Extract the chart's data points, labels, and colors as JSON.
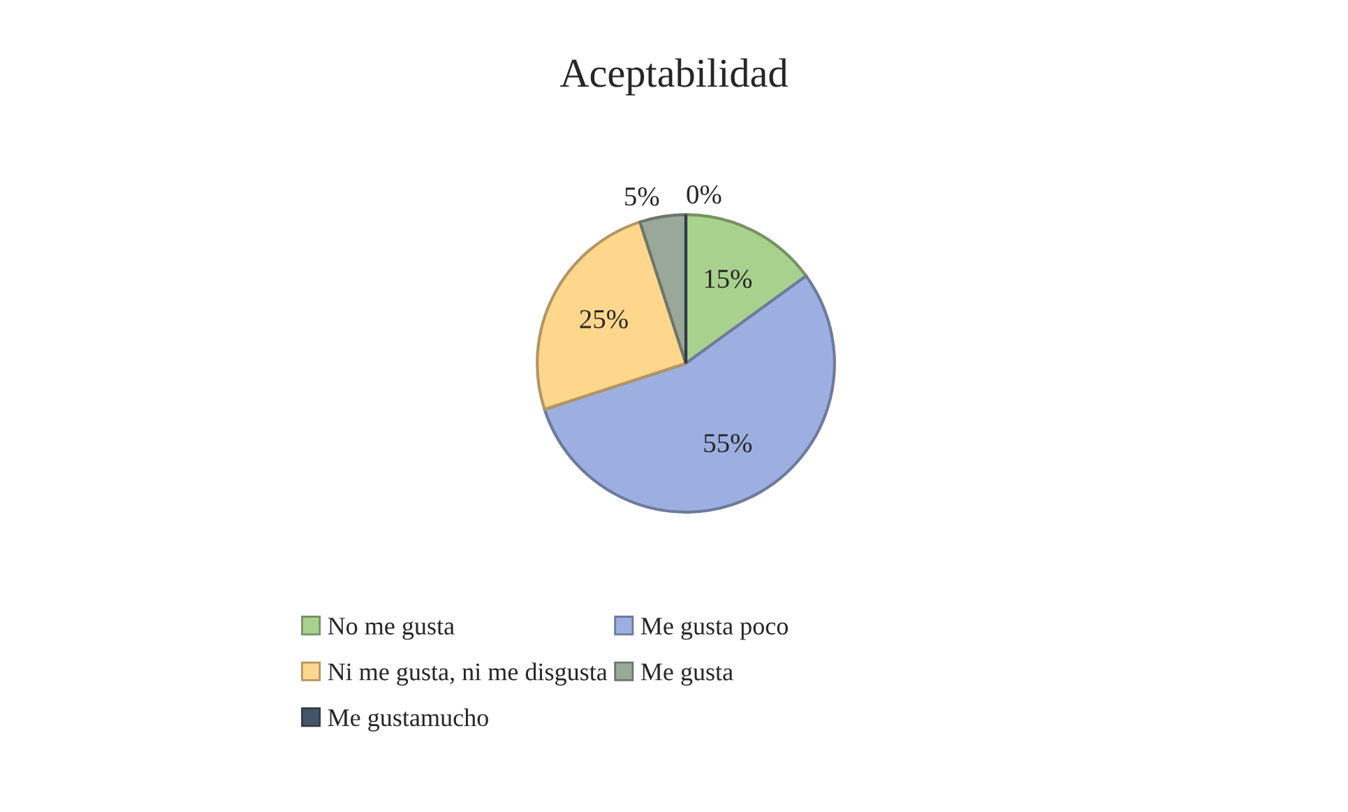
{
  "chart_data": {
    "type": "pie",
    "title": "Aceptabilidad",
    "categories": [
      "No me gusta",
      "Me gusta poco",
      "Ni me gusta, ni me disgusta",
      "Me gusta",
      "Me gustamucho"
    ],
    "values": [
      15,
      55,
      25,
      5,
      0
    ],
    "value_labels": [
      "15%",
      "55%",
      "25%",
      "5%",
      "0%"
    ],
    "colors": [
      "#a9d18e",
      "#9dafe0",
      "#ffd78c",
      "#9aa89a",
      "#44546a"
    ],
    "legend": "bottom"
  }
}
